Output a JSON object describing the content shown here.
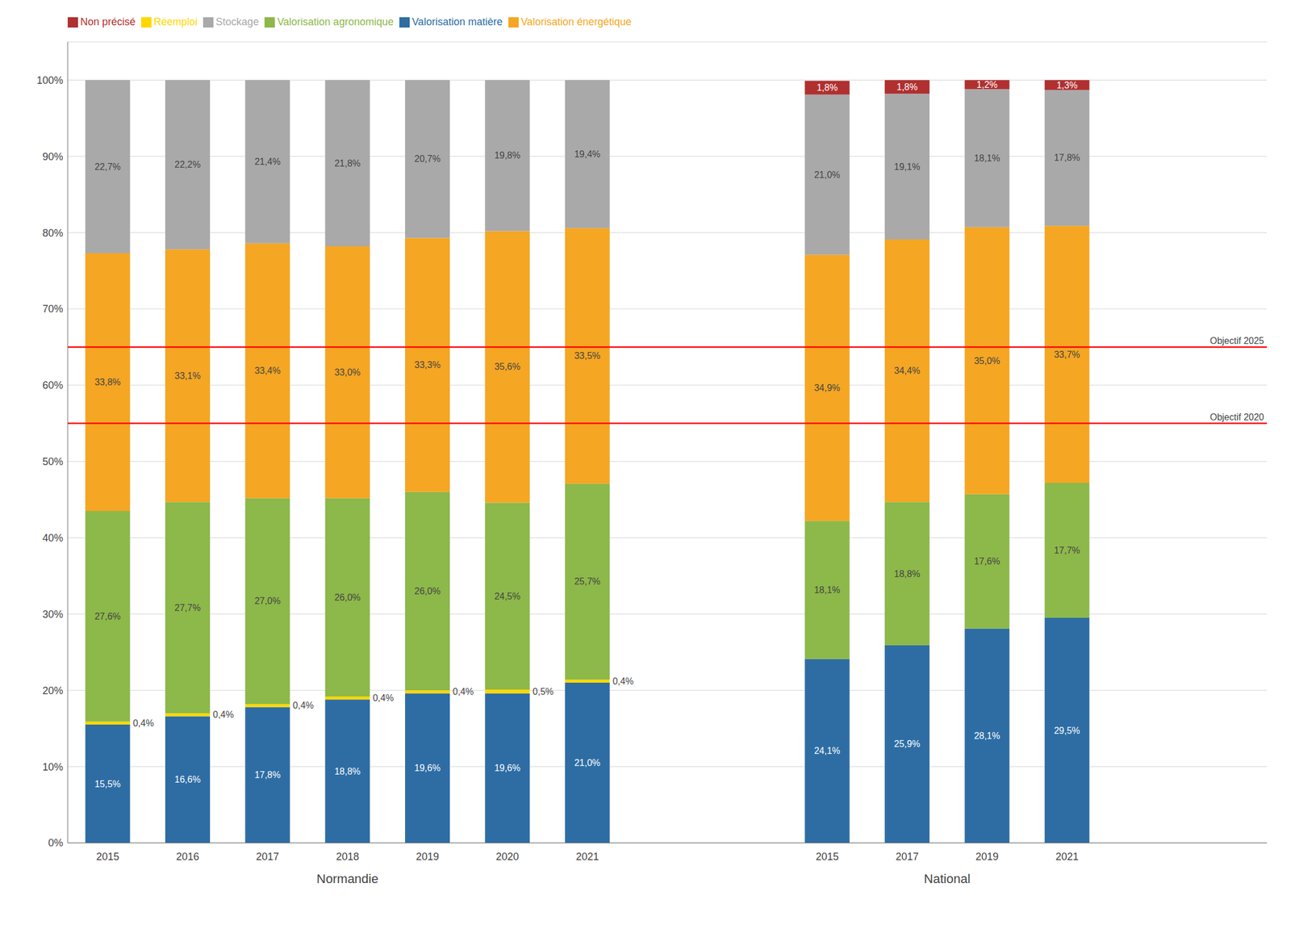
{
  "chart_data": {
    "type": "bar",
    "stacked": true,
    "data_labels": true,
    "grid": true,
    "legend": "upper left",
    "groups": [
      {
        "name": "Normandie",
        "categories": [
          "2015",
          "2016",
          "2017",
          "2018",
          "2019",
          "2020",
          "2021"
        ]
      },
      {
        "name": "National",
        "categories": [
          "2015",
          "2017",
          "2019",
          "2021"
        ]
      }
    ],
    "series": [
      {
        "name": "Valorisation matière",
        "color": "#2E6DA4",
        "values": [
          15.5,
          16.6,
          17.8,
          18.8,
          19.6,
          19.6,
          21.0,
          24.1,
          25.9,
          28.1,
          29.5
        ],
        "value_labels": [
          "15,5%",
          "16,6%",
          "17,8%",
          "18,8%",
          "19,6%",
          "19,6%",
          "21,0%",
          "24,1%",
          "25,9%",
          "28,1%",
          "29,5%"
        ]
      },
      {
        "name": "Réemploi",
        "color": "#FFD700",
        "values": [
          0.4,
          0.4,
          0.4,
          0.4,
          0.4,
          0.5,
          0.4,
          0.0,
          0.0,
          0.0,
          0.0
        ],
        "value_labels": [
          "0,4%",
          "0,4%",
          "0,4%",
          "0,4%",
          "0,4%",
          "0,5%",
          "0,4%",
          null,
          null,
          null,
          null
        ]
      },
      {
        "name": "Valorisation agronomique",
        "color": "#8DB84A",
        "values": [
          27.6,
          27.7,
          27.0,
          26.0,
          26.0,
          24.5,
          25.7,
          18.1,
          18.8,
          17.6,
          17.7
        ],
        "value_labels": [
          "27,6%",
          "27,7%",
          "27,0%",
          "26,0%",
          "26,0%",
          "24,5%",
          "25,7%",
          "18,1%",
          "18,8%",
          "17,6%",
          "17,7%"
        ]
      },
      {
        "name": "Valorisation énergétique",
        "color": "#F5A623",
        "values": [
          33.8,
          33.1,
          33.4,
          33.0,
          33.3,
          35.6,
          33.5,
          34.9,
          34.4,
          35.0,
          33.7
        ],
        "value_labels": [
          "33,8%",
          "33,1%",
          "33,4%",
          "33,0%",
          "33,3%",
          "35,6%",
          "33,5%",
          "34,9%",
          "34,4%",
          "35,0%",
          "33,7%"
        ]
      },
      {
        "name": "Stockage",
        "color": "#A9A9A9",
        "values": [
          22.7,
          22.2,
          21.4,
          21.8,
          20.7,
          19.8,
          19.4,
          21.0,
          19.1,
          18.1,
          17.8
        ],
        "value_labels": [
          "22,7%",
          "22,2%",
          "21,4%",
          "21,8%",
          "20,7%",
          "19,8%",
          "19,4%",
          "21,0%",
          "19,1%",
          "18,1%",
          "17,8%"
        ]
      },
      {
        "name": "Non précisé",
        "color": "#B03030",
        "values": [
          null,
          null,
          null,
          null,
          null,
          null,
          null,
          1.8,
          1.8,
          1.2,
          1.3
        ],
        "value_labels": [
          null,
          null,
          null,
          null,
          null,
          null,
          null,
          "1,8%",
          "1,8%",
          "1,2%",
          "1,3%"
        ]
      }
    ],
    "annotations": [
      {
        "text": "Objectif 2025",
        "y": 65.0,
        "color": "red"
      },
      {
        "text": "Objectif 2020",
        "y": 55.0,
        "color": "red"
      }
    ],
    "ylim": [
      0,
      105
    ],
    "yticks": [
      {
        "value": 0,
        "label": "0%"
      },
      {
        "value": 10,
        "label": "10%"
      },
      {
        "value": 20,
        "label": "20%"
      },
      {
        "value": 30,
        "label": "30%"
      },
      {
        "value": 40,
        "label": "40%"
      },
      {
        "value": 50,
        "label": "50%"
      },
      {
        "value": 60,
        "label": "60%"
      },
      {
        "value": 70,
        "label": "70%"
      },
      {
        "value": 80,
        "label": "80%"
      },
      {
        "value": 90,
        "label": "90%"
      },
      {
        "value": 100,
        "label": "100%"
      }
    ]
  }
}
